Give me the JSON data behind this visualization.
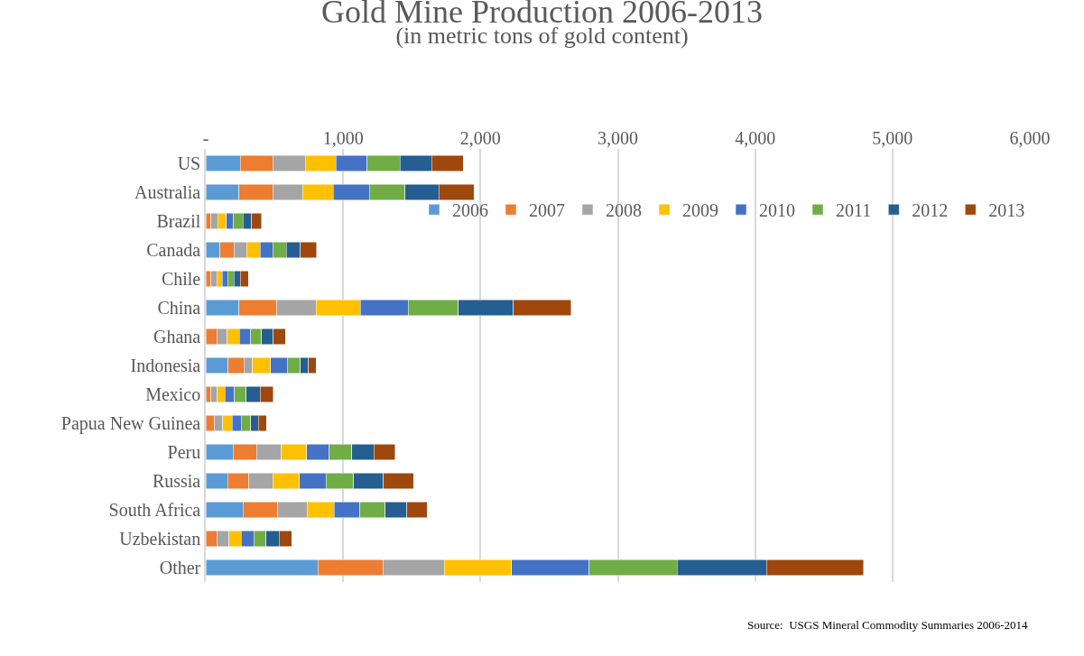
{
  "chart_data": {
    "type": "bar",
    "orientation": "horizontal",
    "stacked": true,
    "title": "Gold Mine Production 2006-2013",
    "subtitle": "(in metric tons of gold content)",
    "categories": [
      "US",
      "Australia",
      "Brazil",
      "Canada",
      "Chile",
      "China",
      "Ghana",
      "Indonesia",
      "Mexico",
      "Papua New Guinea",
      "Peru",
      "Russia",
      "South Africa",
      "Uzbekistan",
      "Other"
    ],
    "series": [
      {
        "name": "2006",
        "color": "#5b9bd5",
        "values": [
          250,
          241,
          null,
          103,
          null,
          243,
          null,
          162,
          null,
          null,
          200,
          158,
          272,
          null,
          818
        ]
      },
      {
        "name": "2007",
        "color": "#ed7d31",
        "values": [
          237,
          246,
          37,
          101,
          37,
          276,
          79,
          114,
          37,
          64,
          171,
          156,
          252,
          79,
          471
        ]
      },
      {
        "name": "2008",
        "color": "#a5a5a5",
        "values": [
          237,
          219,
          50,
          94,
          42,
          283,
          77,
          64,
          48,
          59,
          180,
          175,
          213,
          90,
          447
        ]
      },
      {
        "name": "2009",
        "color": "#ffc000",
        "values": [
          224,
          222,
          61,
          99,
          42,
          325,
          88,
          132,
          53,
          68,
          184,
          193,
          197,
          90,
          491
        ]
      },
      {
        "name": "2010",
        "color": "#4472c4",
        "values": [
          228,
          263,
          55,
          90,
          37,
          346,
          83,
          121,
          70,
          66,
          164,
          193,
          189,
          90,
          564
        ]
      },
      {
        "name": "2011",
        "color": "#70ad47",
        "values": [
          237,
          261,
          68,
          99,
          48,
          364,
          79,
          96,
          86,
          70,
          164,
          200,
          184,
          90,
          640
        ]
      },
      {
        "name": "2012",
        "color": "#255e91",
        "values": [
          232,
          246,
          64,
          103,
          46,
          401,
          86,
          59,
          101,
          55,
          160,
          219,
          158,
          94,
          653
        ]
      },
      {
        "name": "2013",
        "color": "#9e480e",
        "values": [
          230,
          254,
          72,
          118,
          57,
          421,
          88,
          57,
          96,
          59,
          154,
          219,
          147,
          92,
          704
        ]
      }
    ],
    "xlim": [
      0,
      6000
    ],
    "xticks": [
      {
        "value": 0,
        "label": "-"
      },
      {
        "value": 1000,
        "label": "1,000"
      },
      {
        "value": 2000,
        "label": "2,000"
      },
      {
        "value": 3000,
        "label": "3,000"
      },
      {
        "value": 4000,
        "label": "4,000"
      },
      {
        "value": 5000,
        "label": "5,000"
      },
      {
        "value": 6000,
        "label": "6,000"
      }
    ],
    "grid": "x",
    "legend": "right",
    "annotations": [
      "Source:  USGS Mineral Commodity Summaries 2006-2014"
    ]
  }
}
